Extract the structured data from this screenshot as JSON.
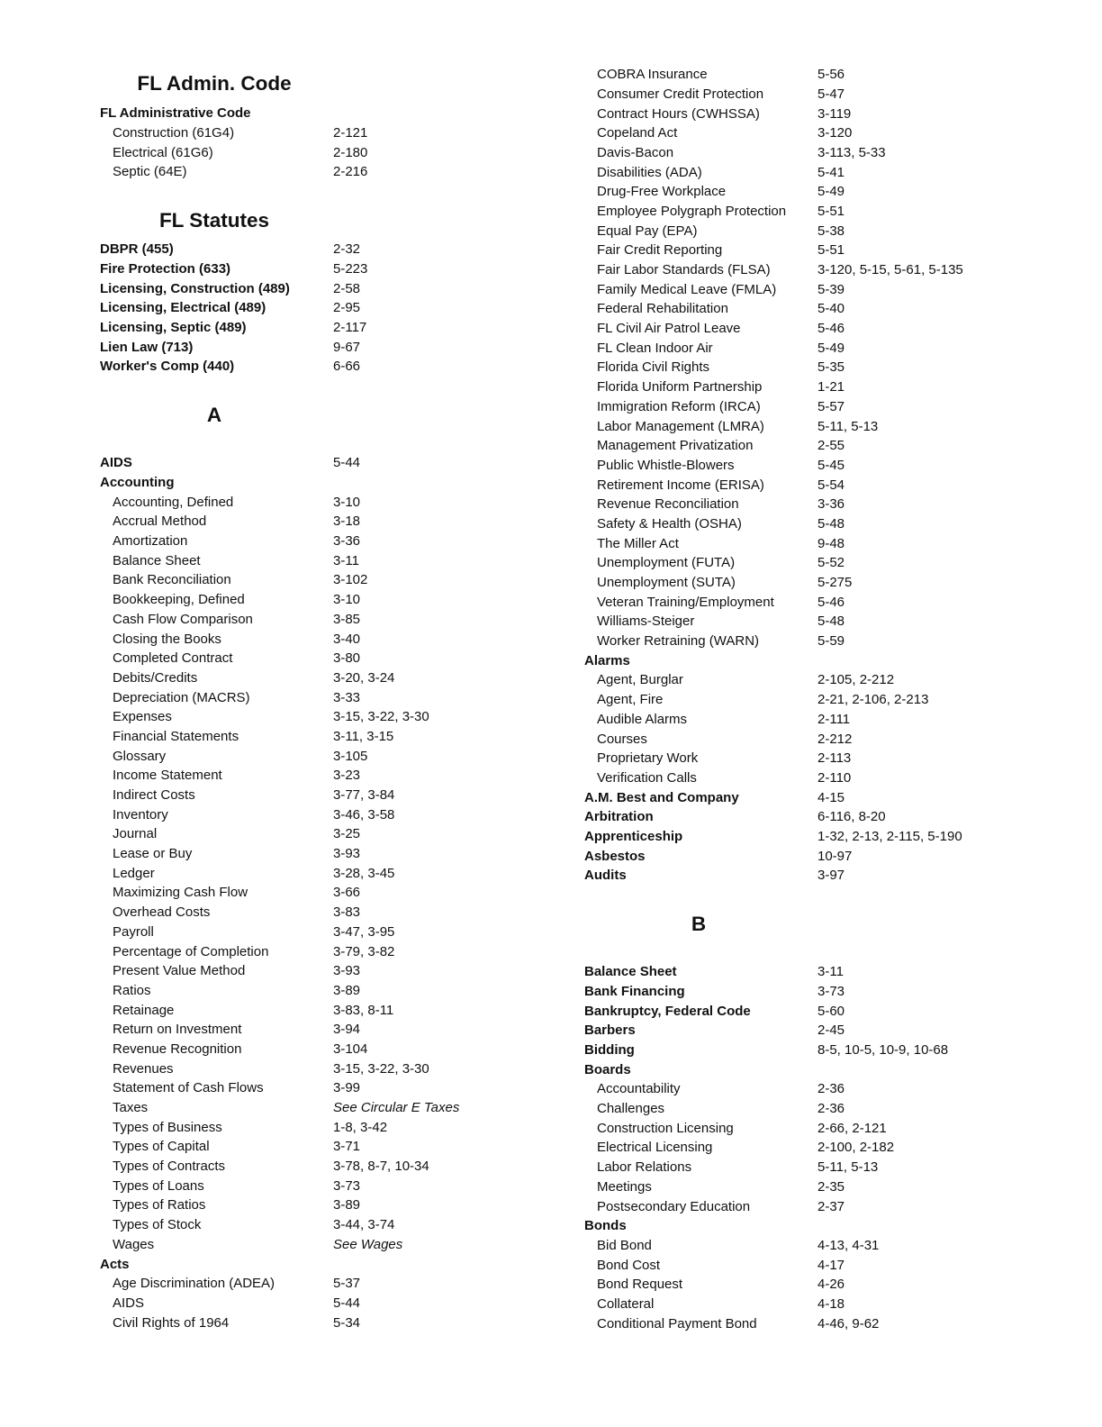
{
  "left_column": [
    {
      "type": "heading",
      "style": "top",
      "text": "FL Admin. Code"
    },
    {
      "type": "main",
      "label": "FL Administrative Code",
      "pages": ""
    },
    {
      "type": "sub",
      "label": "Construction (61G4)",
      "pages": "2-121"
    },
    {
      "type": "sub",
      "label": "Electrical (61G6)",
      "pages": "2-180"
    },
    {
      "type": "sub",
      "label": "Septic (64E)",
      "pages": "2-216"
    },
    {
      "type": "heading",
      "style": "mid",
      "text": "FL Statutes"
    },
    {
      "type": "main",
      "label": "DBPR (455)",
      "pages": "2-32"
    },
    {
      "type": "main",
      "label": "Fire Protection (633)",
      "pages": "5-223"
    },
    {
      "type": "main",
      "label": "Licensing, Construction (489)",
      "pages": "2-58"
    },
    {
      "type": "main",
      "label": "Licensing, Electrical (489)",
      "pages": "2-95"
    },
    {
      "type": "main",
      "label": "Licensing, Septic (489)",
      "pages": "2-117"
    },
    {
      "type": "main",
      "label": "Lien Law (713)",
      "pages": "9-67"
    },
    {
      "type": "main",
      "label": "Worker's Comp (440)",
      "pages": "6-66"
    },
    {
      "type": "heading",
      "style": "letter",
      "text": "A"
    },
    {
      "type": "main",
      "label": "AIDS",
      "pages": "5-44"
    },
    {
      "type": "main",
      "label": "Accounting",
      "pages": ""
    },
    {
      "type": "sub",
      "label": "Accounting, Defined",
      "pages": "3-10"
    },
    {
      "type": "sub",
      "label": "Accrual Method",
      "pages": "3-18"
    },
    {
      "type": "sub",
      "label": "Amortization",
      "pages": "3-36"
    },
    {
      "type": "sub",
      "label": "Balance Sheet",
      "pages": "3-11"
    },
    {
      "type": "sub",
      "label": "Bank Reconciliation",
      "pages": "3-102"
    },
    {
      "type": "sub",
      "label": "Bookkeeping, Defined",
      "pages": "3-10"
    },
    {
      "type": "sub",
      "label": "Cash Flow Comparison",
      "pages": "3-85"
    },
    {
      "type": "sub",
      "label": "Closing the Books",
      "pages": "3-40"
    },
    {
      "type": "sub",
      "label": "Completed Contract",
      "pages": "3-80"
    },
    {
      "type": "sub",
      "label": "Debits/Credits",
      "pages": "3-20, 3-24"
    },
    {
      "type": "sub",
      "label": "Depreciation (MACRS)",
      "pages": "3-33"
    },
    {
      "type": "sub",
      "label": "Expenses",
      "pages": "3-15, 3-22, 3-30"
    },
    {
      "type": "sub",
      "label": "Financial Statements",
      "pages": "3-11, 3-15"
    },
    {
      "type": "sub",
      "label": "Glossary",
      "pages": "3-105"
    },
    {
      "type": "sub",
      "label": "Income Statement",
      "pages": "3-23"
    },
    {
      "type": "sub",
      "label": "Indirect Costs",
      "pages": "3-77, 3-84"
    },
    {
      "type": "sub",
      "label": "Inventory",
      "pages": "3-46, 3-58"
    },
    {
      "type": "sub",
      "label": "Journal",
      "pages": "3-25"
    },
    {
      "type": "sub",
      "label": "Lease or Buy",
      "pages": "3-93"
    },
    {
      "type": "sub",
      "label": "Ledger",
      "pages": "3-28, 3-45"
    },
    {
      "type": "sub",
      "label": "Maximizing Cash Flow",
      "pages": "3-66"
    },
    {
      "type": "sub",
      "label": "Overhead Costs",
      "pages": "3-83"
    },
    {
      "type": "sub",
      "label": "Payroll",
      "pages": "3-47, 3-95"
    },
    {
      "type": "sub",
      "label": "Percentage of Completion",
      "pages": "3-79, 3-82"
    },
    {
      "type": "sub",
      "label": "Present Value Method",
      "pages": "3-93"
    },
    {
      "type": "sub",
      "label": "Ratios",
      "pages": "3-89"
    },
    {
      "type": "sub",
      "label": "Retainage",
      "pages": "3-83, 8-11"
    },
    {
      "type": "sub",
      "label": "Return on Investment",
      "pages": "3-94"
    },
    {
      "type": "sub",
      "label": "Revenue Recognition",
      "pages": "3-104"
    },
    {
      "type": "sub",
      "label": "Revenues",
      "pages": "3-15, 3-22, 3-30"
    },
    {
      "type": "sub",
      "label": "Statement of Cash Flows",
      "pages": "3-99"
    },
    {
      "type": "sub",
      "label": "Taxes",
      "pages": "See Circular E Taxes",
      "italic": true
    },
    {
      "type": "sub",
      "label": "Types of Business",
      "pages": "1-8, 3-42"
    },
    {
      "type": "sub",
      "label": "Types of Capital",
      "pages": "3-71"
    },
    {
      "type": "sub",
      "label": "Types of Contracts",
      "pages": "3-78, 8-7, 10-34"
    },
    {
      "type": "sub",
      "label": "Types of Loans",
      "pages": "3-73"
    },
    {
      "type": "sub",
      "label": "Types of Ratios",
      "pages": "3-89"
    },
    {
      "type": "sub",
      "label": "Types of Stock",
      "pages": "3-44, 3-74"
    },
    {
      "type": "sub",
      "label": "Wages",
      "pages": "See Wages",
      "italic": true
    },
    {
      "type": "main",
      "label": "Acts",
      "pages": ""
    },
    {
      "type": "sub",
      "label": "Age Discrimination (ADEA)",
      "pages": "5-37"
    },
    {
      "type": "sub",
      "label": "AIDS",
      "pages": "5-44"
    },
    {
      "type": "sub",
      "label": "Civil Rights of 1964",
      "pages": "5-34"
    }
  ],
  "right_column": [
    {
      "type": "sub",
      "label": "COBRA Insurance",
      "pages": "5-56"
    },
    {
      "type": "sub",
      "label": "Consumer Credit Protection",
      "pages": "5-47"
    },
    {
      "type": "sub",
      "label": "Contract Hours (CWHSSA)",
      "pages": "3-119"
    },
    {
      "type": "sub",
      "label": "Copeland Act",
      "pages": "3-120"
    },
    {
      "type": "sub",
      "label": "Davis-Bacon",
      "pages": "3-113, 5-33"
    },
    {
      "type": "sub",
      "label": "Disabilities (ADA)",
      "pages": "5-41"
    },
    {
      "type": "sub",
      "label": "Drug-Free Workplace",
      "pages": "5-49"
    },
    {
      "type": "sub",
      "label": "Employee Polygraph Protection",
      "pages": "5-51"
    },
    {
      "type": "sub",
      "label": "Equal Pay (EPA)",
      "pages": "5-38"
    },
    {
      "type": "sub",
      "label": "Fair Credit Reporting",
      "pages": "5-51"
    },
    {
      "type": "sub",
      "label": "Fair Labor Standards (FLSA)",
      "pages": "3-120, 5-15, 5-61, 5-135"
    },
    {
      "type": "sub",
      "label": "Family Medical Leave (FMLA)",
      "pages": "5-39"
    },
    {
      "type": "sub",
      "label": "Federal Rehabilitation",
      "pages": "5-40"
    },
    {
      "type": "sub",
      "label": "FL Civil Air Patrol Leave",
      "pages": "5-46"
    },
    {
      "type": "sub",
      "label": "FL Clean Indoor Air",
      "pages": "5-49"
    },
    {
      "type": "sub",
      "label": "Florida Civil Rights",
      "pages": "5-35"
    },
    {
      "type": "sub",
      "label": "Florida Uniform Partnership",
      "pages": "1-21"
    },
    {
      "type": "sub",
      "label": "Immigration Reform (IRCA)",
      "pages": "5-57"
    },
    {
      "type": "sub",
      "label": "Labor Management (LMRA)",
      "pages": "5-11, 5-13"
    },
    {
      "type": "sub",
      "label": "Management Privatization",
      "pages": "2-55"
    },
    {
      "type": "sub",
      "label": "Public Whistle-Blowers",
      "pages": "5-45"
    },
    {
      "type": "sub",
      "label": "Retirement Income (ERISA)",
      "pages": "5-54"
    },
    {
      "type": "sub",
      "label": "Revenue Reconciliation",
      "pages": "3-36"
    },
    {
      "type": "sub",
      "label": "Safety & Health (OSHA)",
      "pages": "5-48"
    },
    {
      "type": "sub",
      "label": "The Miller Act",
      "pages": "9-48"
    },
    {
      "type": "sub",
      "label": "Unemployment (FUTA)",
      "pages": "5-52"
    },
    {
      "type": "sub",
      "label": "Unemployment (SUTA)",
      "pages": "5-275"
    },
    {
      "type": "sub",
      "label": "Veteran Training/Employment",
      "pages": "5-46"
    },
    {
      "type": "sub",
      "label": "Williams-Steiger",
      "pages": "5-48"
    },
    {
      "type": "sub",
      "label": "Worker Retraining (WARN)",
      "pages": "5-59"
    },
    {
      "type": "main",
      "label": "Alarms",
      "pages": ""
    },
    {
      "type": "sub",
      "label": "Agent, Burglar",
      "pages": "2-105, 2-212"
    },
    {
      "type": "sub",
      "label": "Agent, Fire",
      "pages": "2-21, 2-106, 2-213"
    },
    {
      "type": "sub",
      "label": "Audible Alarms",
      "pages": "2-111"
    },
    {
      "type": "sub",
      "label": "Courses",
      "pages": "2-212"
    },
    {
      "type": "sub",
      "label": "Proprietary Work",
      "pages": "2-113"
    },
    {
      "type": "sub",
      "label": "Verification Calls",
      "pages": "2-110"
    },
    {
      "type": "main",
      "label": "A.M. Best and Company",
      "pages": "4-15"
    },
    {
      "type": "main",
      "label": "Arbitration",
      "pages": "6-116, 8-20"
    },
    {
      "type": "main",
      "label": "Apprenticeship",
      "pages": "1-32, 2-13, 2-115, 5-190"
    },
    {
      "type": "main",
      "label": "Asbestos",
      "pages": "10-97"
    },
    {
      "type": "main",
      "label": "Audits",
      "pages": "3-97"
    },
    {
      "type": "heading",
      "style": "letter",
      "text": "B"
    },
    {
      "type": "main",
      "label": "Balance Sheet",
      "pages": "3-11"
    },
    {
      "type": "main",
      "label": "Bank Financing",
      "pages": "3-73"
    },
    {
      "type": "main",
      "label": "Bankruptcy, Federal Code",
      "pages": "5-60"
    },
    {
      "type": "main",
      "label": "Barbers",
      "pages": "2-45"
    },
    {
      "type": "main",
      "label": "Bidding",
      "pages": "8-5, 10-5, 10-9, 10-68"
    },
    {
      "type": "main",
      "label": "Boards",
      "pages": ""
    },
    {
      "type": "sub",
      "label": "Accountability",
      "pages": "2-36"
    },
    {
      "type": "sub",
      "label": "Challenges",
      "pages": "2-36"
    },
    {
      "type": "sub",
      "label": "Construction Licensing",
      "pages": "2-66, 2-121"
    },
    {
      "type": "sub",
      "label": "Electrical Licensing",
      "pages": "2-100, 2-182"
    },
    {
      "type": "sub",
      "label": "Labor Relations",
      "pages": "5-11, 5-13"
    },
    {
      "type": "sub",
      "label": "Meetings",
      "pages": "2-35"
    },
    {
      "type": "sub",
      "label": "Postsecondary Education",
      "pages": "2-37"
    },
    {
      "type": "main",
      "label": "Bonds",
      "pages": ""
    },
    {
      "type": "sub",
      "label": "Bid Bond",
      "pages": "4-13, 4-31"
    },
    {
      "type": "sub",
      "label": "Bond Cost",
      "pages": "4-17"
    },
    {
      "type": "sub",
      "label": "Bond Request",
      "pages": "4-26"
    },
    {
      "type": "sub",
      "label": "Collateral",
      "pages": "4-18"
    },
    {
      "type": "sub",
      "label": "Conditional Payment Bond",
      "pages": "4-46, 9-62"
    }
  ]
}
